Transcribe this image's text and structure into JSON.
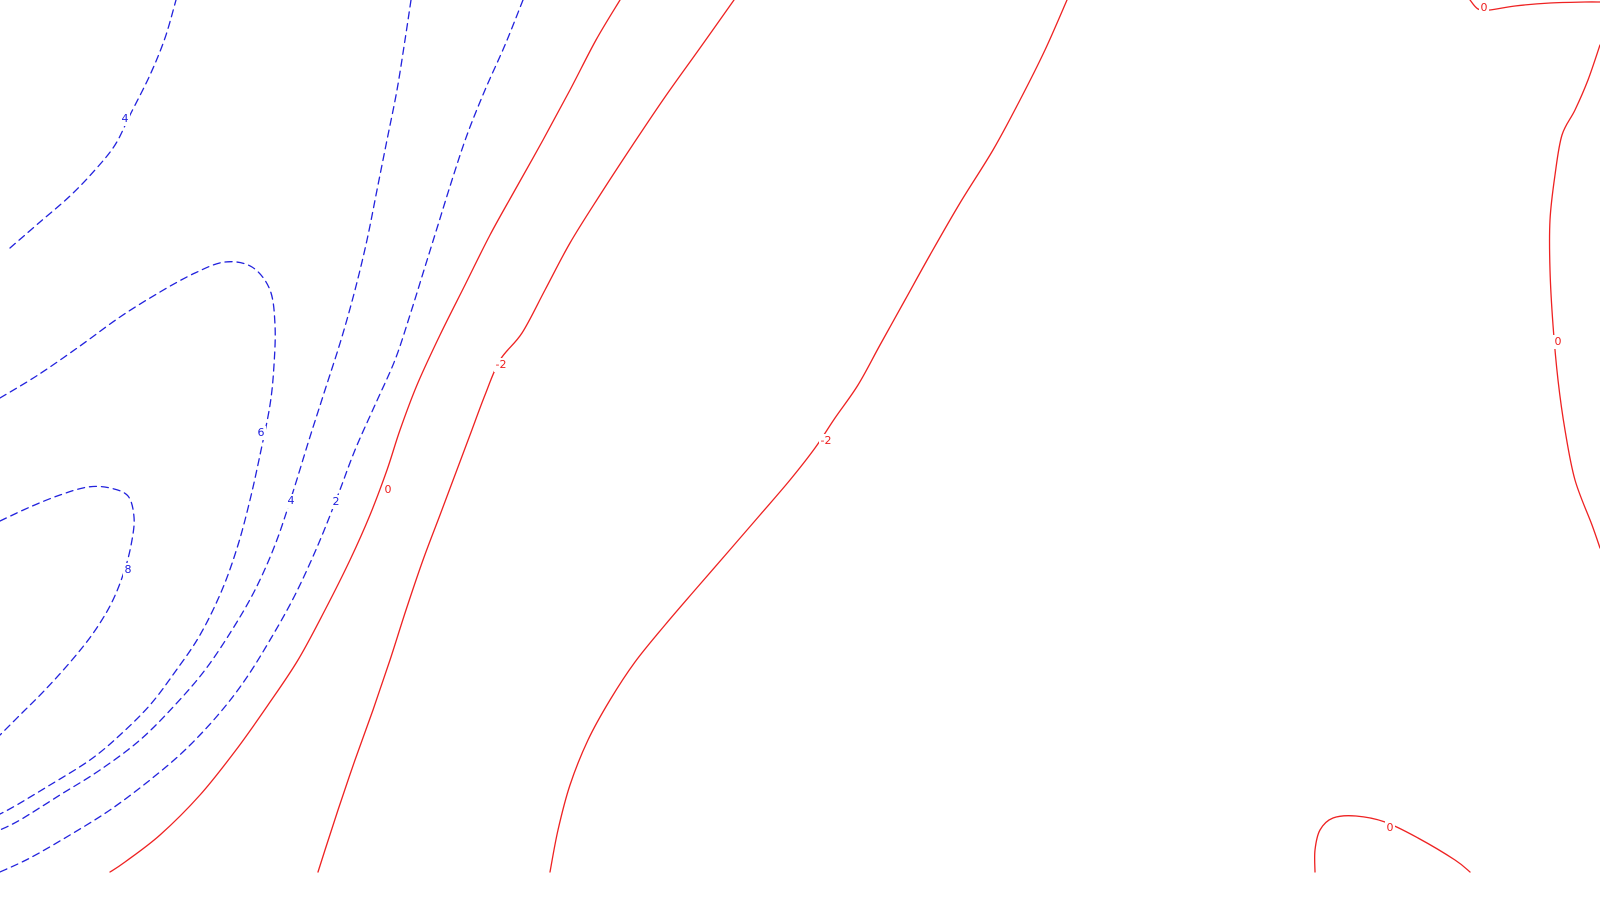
{
  "chart_data": {
    "type": "contour",
    "title": "",
    "xlabel": "",
    "ylabel": "",
    "grid": false,
    "legend": "none",
    "colors": {
      "positive": "#2222dd",
      "negative_or_zero": "#ee2222"
    },
    "contour_levels": [
      8,
      6,
      4,
      4,
      2,
      0,
      -2,
      -2,
      0,
      0,
      0
    ],
    "contours": [
      {
        "id": "level-8",
        "value": 8,
        "style": "dashed",
        "color": "#2222dd",
        "label": "8"
      },
      {
        "id": "level-6",
        "value": 6,
        "style": "dashed",
        "color": "#2222dd",
        "label": "6"
      },
      {
        "id": "level-4-west",
        "value": 4,
        "style": "dashed",
        "color": "#2222dd",
        "label": "4"
      },
      {
        "id": "level-4-center",
        "value": 4,
        "style": "dashed",
        "color": "#2222dd",
        "label": "4"
      },
      {
        "id": "level-2",
        "value": 2,
        "style": "dashed",
        "color": "#2222dd",
        "label": "2"
      },
      {
        "id": "level-0-west",
        "value": 0,
        "style": "solid",
        "color": "#ee2222",
        "label": "0"
      },
      {
        "id": "level-minus2-west",
        "value": -2,
        "style": "solid",
        "color": "#ee2222",
        "label": "-2"
      },
      {
        "id": "level-minus2-center",
        "value": -2,
        "style": "solid",
        "color": "#ee2222",
        "label": "-2"
      },
      {
        "id": "level-0-northeast",
        "value": 0,
        "style": "solid",
        "color": "#ee2222",
        "label": "0"
      },
      {
        "id": "level-0-east",
        "value": 0,
        "style": "solid",
        "color": "#ee2222",
        "label": "0"
      },
      {
        "id": "level-0-southeast",
        "value": 0,
        "style": "solid",
        "color": "#ee2222",
        "label": "0"
      }
    ]
  }
}
